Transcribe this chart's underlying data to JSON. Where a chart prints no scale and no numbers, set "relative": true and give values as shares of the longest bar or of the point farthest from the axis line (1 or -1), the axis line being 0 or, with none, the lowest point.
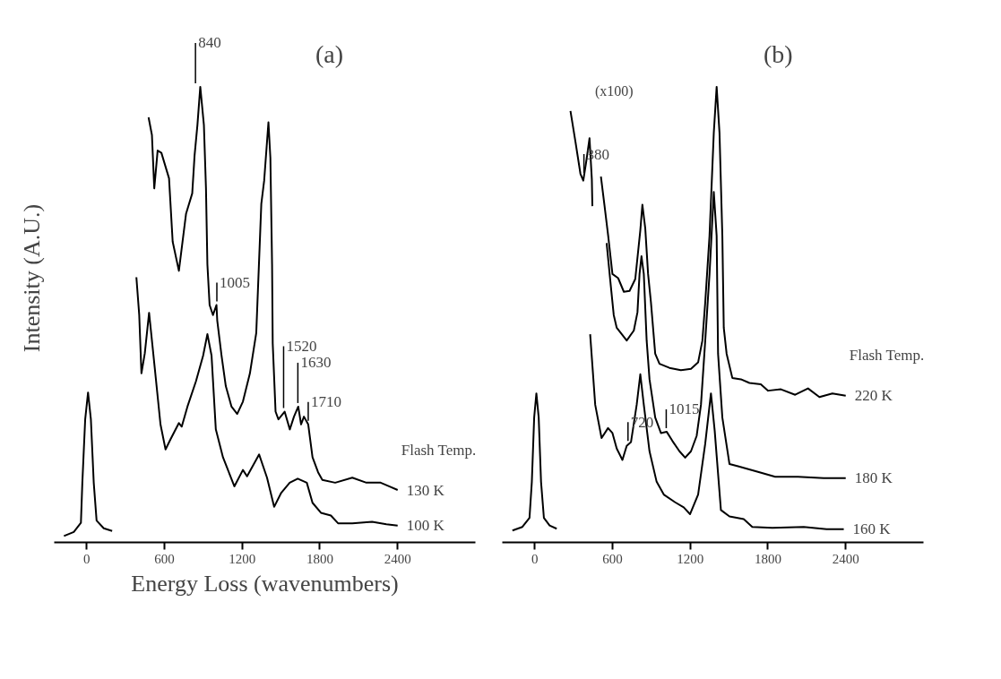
{
  "chart_data": [
    {
      "type": "line",
      "title": "(a)",
      "ylabel": "Intensity (A.U.)",
      "xlabel": "Energy Loss (wavenumbers)",
      "legend_title": "Flash Temp.",
      "relative": true,
      "xlim": [
        -250,
        3000
      ],
      "xticks": [
        0,
        600,
        1200,
        1800,
        2400
      ],
      "series": [
        {
          "color": "#000000",
          "x": [
            -175,
            -99,
            -44,
            -33,
            -11,
            11,
            33,
            55,
            77,
            132,
            197
          ],
          "values": [
            0.014,
            0.023,
            0.043,
            0.131,
            0.27,
            0.329,
            0.27,
            0.131,
            0.048,
            0.031,
            0.025
          ]
        },
        {
          "name": "130 K",
          "color": "#000000",
          "x": [
            478,
            504,
            522,
            548,
            577,
            636,
            664,
            712,
            767,
            815,
            833,
            855,
            877,
            905,
            921,
            932,
            949,
            975,
            1002,
            1008,
            1041,
            1074,
            1118,
            1162,
            1206,
            1260,
            1309,
            1348,
            1370,
            1403,
            1418,
            1431,
            1436,
            1458,
            1480,
            1528,
            1568,
            1600,
            1633,
            1655,
            1677,
            1710,
            1743,
            1786,
            1819,
            1918,
            2050,
            2159,
            2269,
            2334,
            2400
          ],
          "values": [
            0.933,
            0.894,
            0.777,
            0.86,
            0.855,
            0.799,
            0.66,
            0.596,
            0.721,
            0.766,
            0.849,
            0.916,
            1,
            0.916,
            0.777,
            0.61,
            0.521,
            0.499,
            0.521,
            0.487,
            0.41,
            0.343,
            0.298,
            0.282,
            0.309,
            0.371,
            0.46,
            0.743,
            0.794,
            0.922,
            0.844,
            0.61,
            0.437,
            0.287,
            0.27,
            0.287,
            0.248,
            0.276,
            0.298,
            0.259,
            0.276,
            0.259,
            0.187,
            0.154,
            0.137,
            0.131,
            0.142,
            0.131,
            0.131,
            0.123,
            0.115
          ]
        },
        {
          "name": "100 K",
          "color": "#000000",
          "x": [
            384,
            406,
            423,
            449,
            482,
            526,
            570,
            609,
            647,
            712,
            734,
            778,
            844,
            899,
            932,
            964,
            997,
            1052,
            1140,
            1206,
            1238,
            1331,
            1392,
            1447,
            1502,
            1567,
            1629,
            1699,
            1743,
            1808,
            1885,
            1940,
            2050,
            2203,
            2313,
            2400
          ],
          "values": [
            0.582,
            0.499,
            0.371,
            0.415,
            0.504,
            0.382,
            0.259,
            0.204,
            0.226,
            0.262,
            0.254,
            0.298,
            0.354,
            0.41,
            0.457,
            0.41,
            0.248,
            0.187,
            0.123,
            0.159,
            0.145,
            0.193,
            0.142,
            0.078,
            0.109,
            0.131,
            0.14,
            0.131,
            0.087,
            0.065,
            0.059,
            0.042,
            0.042,
            0.045,
            0.04,
            0.037
          ]
        }
      ],
      "annotations": [
        {
          "text": "840",
          "x": 840,
          "y": 1
        },
        {
          "text": "1005",
          "x": 1005,
          "y": 0.521
        },
        {
          "text": "1520",
          "x": 1520,
          "y": 0.287
        },
        {
          "text": "1630",
          "x": 1630,
          "y": 0.298
        },
        {
          "text": "1710",
          "x": 1710,
          "y": 0.259
        }
      ]
    },
    {
      "type": "line",
      "title": "(b)",
      "legend_title": "Flash Temp.",
      "relative": true,
      "xlim": [
        -250,
        3000
      ],
      "xticks": [
        0,
        600,
        1200,
        1800,
        2400
      ],
      "series": [
        {
          "color": "#000000",
          "x": [
            -172,
            -95,
            -40,
            -22,
            -4,
            13,
            31,
            49,
            71,
            115,
            170
          ],
          "values": [
            0.026,
            0.034,
            0.054,
            0.133,
            0.274,
            0.327,
            0.274,
            0.133,
            0.054,
            0.037,
            0.03
          ]
        },
        {
          "name": "220 K",
          "color": "#000000",
          "x": [
            276,
            313,
            353,
            375,
            401,
            423,
            441,
            445,
            478,
            511,
            538,
            567,
            600,
            644,
            688,
            732,
            776,
            815,
            831,
            853,
            875,
            897,
            930,
            963,
            1040,
            1128,
            1206,
            1261,
            1294,
            1316,
            1349,
            1382,
            1404,
            1426,
            1448,
            1459,
            1481,
            1525,
            1591,
            1657,
            1745,
            1801,
            1900,
            2010,
            2109,
            2197,
            2297,
            2400
          ],
          "values": [
            0.947,
            0.882,
            0.809,
            0.794,
            0.842,
            0.887,
            0.797,
            0.738,
            null,
            0.803,
            0.741,
            0.673,
            0.589,
            0.58,
            0.55,
            0.552,
            0.578,
            0.685,
            0.741,
            0.69,
            0.589,
            0.527,
            0.414,
            0.392,
            0.383,
            0.378,
            0.381,
            0.395,
            0.443,
            0.527,
            0.673,
            0.899,
            1,
            0.899,
            0.673,
            0.471,
            0.414,
            0.361,
            0.358,
            0.35,
            0.347,
            0.333,
            0.336,
            0.324,
            0.338,
            0.319,
            0.327,
            0.322
          ]
        },
        {
          "name": "180 K",
          "color": "#000000",
          "x": [
            555,
            588,
            610,
            633,
            710,
            765,
            793,
            809,
            824,
            842,
            864,
            886,
            930,
            974,
            1018,
            1062,
            1117,
            1161,
            1206,
            1250,
            1283,
            1316,
            1349,
            1382,
            1404,
            1415,
            1448,
            1503,
            1569,
            1723,
            1856,
            2032,
            2230,
            2400
          ],
          "values": [
            0.657,
            0.561,
            0.499,
            0.471,
            0.443,
            0.465,
            0.505,
            0.589,
            0.628,
            0.589,
            0.443,
            0.358,
            0.274,
            0.24,
            0.243,
            0.223,
            0.2,
            0.186,
            0.2,
            0.234,
            0.302,
            0.443,
            0.589,
            0.769,
            0.673,
            0.414,
            0.274,
            0.172,
            0.167,
            0.155,
            0.144,
            0.144,
            0.141,
            0.141
          ]
        },
        {
          "name": "160 K",
          "color": "#000000",
          "x": [
            428,
            467,
            516,
            566,
            600,
            633,
            677,
            710,
            743,
            787,
            815,
            842,
            886,
            941,
            996,
            1084,
            1150,
            1199,
            1261,
            1316,
            1360,
            1389,
            1437,
            1503,
            1613,
            1679,
            1834,
            2076,
            2252,
            2385
          ],
          "values": [
            0.457,
            0.302,
            0.229,
            0.251,
            0.24,
            0.206,
            0.181,
            0.212,
            0.22,
            0.302,
            0.369,
            0.302,
            0.2,
            0.133,
            0.105,
            0.088,
            0.077,
            0.062,
            0.105,
            0.217,
            0.327,
            0.245,
            0.071,
            0.057,
            0.051,
            0.034,
            0.032,
            0.034,
            0.029,
            0.029
          ]
        }
      ],
      "annotations": [
        {
          "text": "380",
          "x": 380,
          "y": 0.803
        },
        "(x100)",
        {
          "text": "720",
          "x": 720,
          "y": 0.215
        },
        {
          "text": "1015",
          "x": 1015,
          "y": 0.243
        }
      ]
    }
  ]
}
